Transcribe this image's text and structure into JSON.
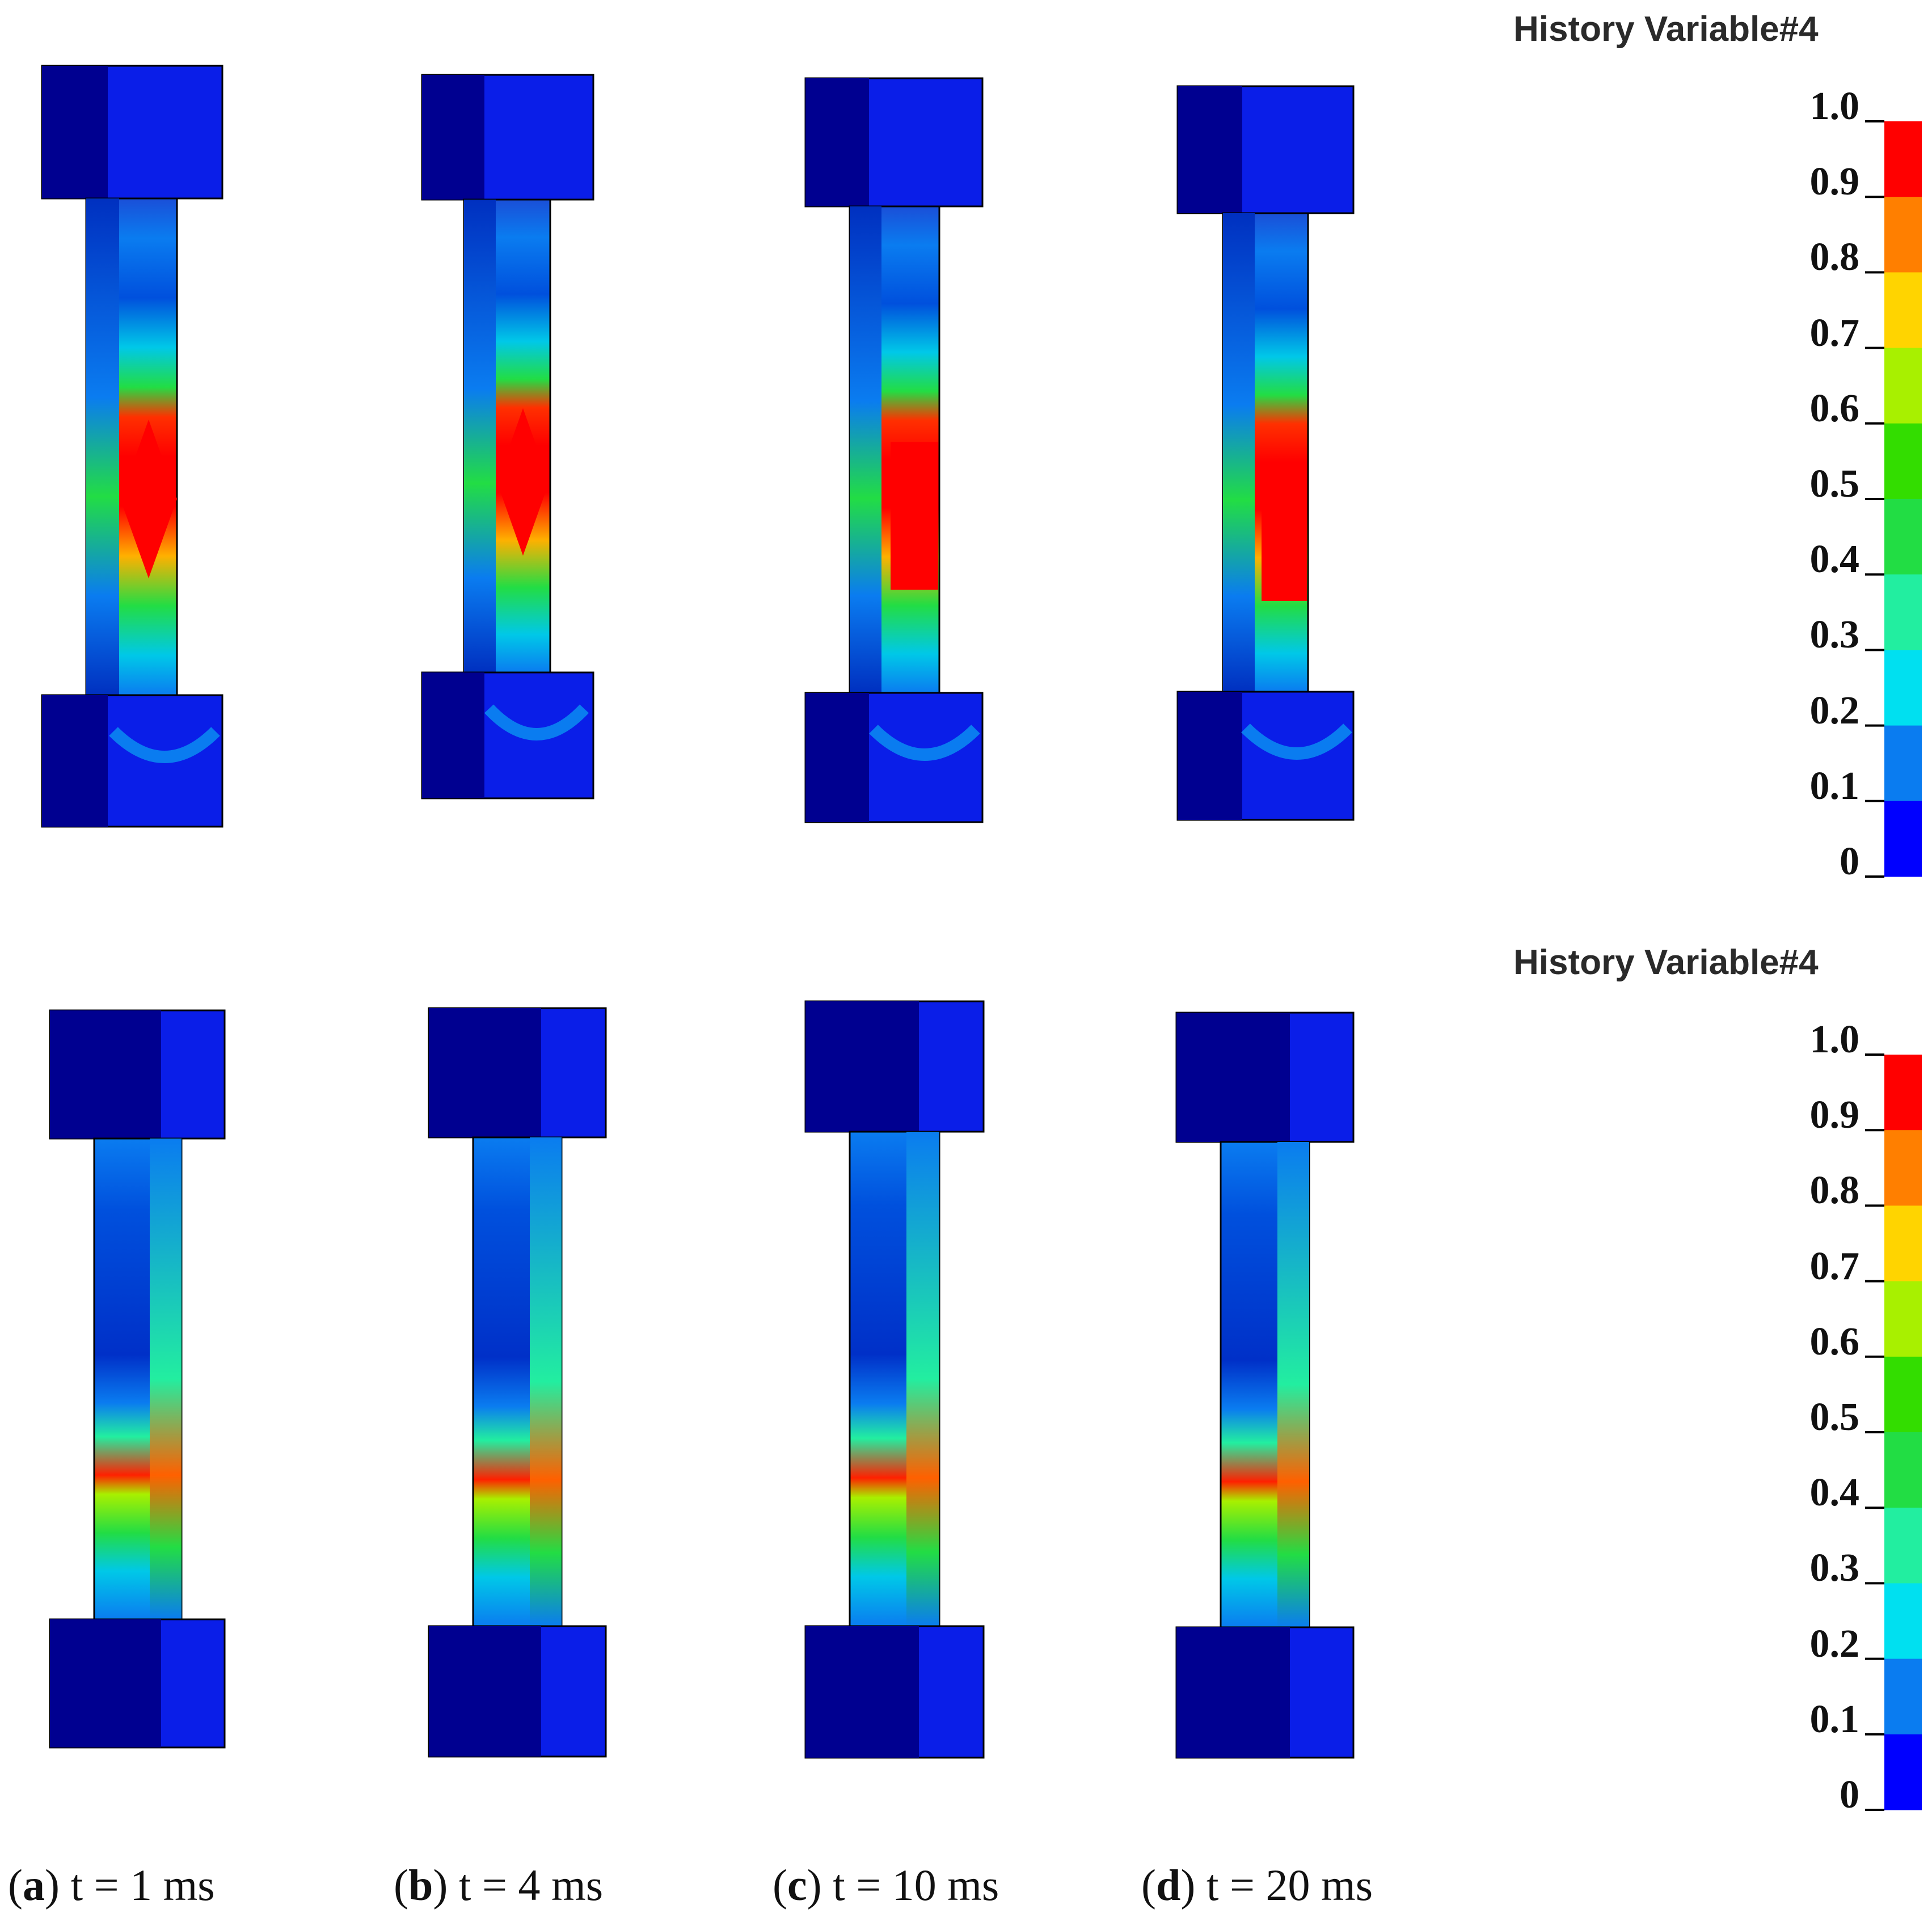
{
  "legend": {
    "title": "History Variable#4",
    "ticks": [
      "1.0",
      "0.9",
      "0.8",
      "0.7",
      "0.6",
      "0.5",
      "0.4",
      "0.3",
      "0.2",
      "0.1",
      "0"
    ],
    "colors": [
      "#ff0000",
      "#ff7f00",
      "#ffd400",
      "#a8f000",
      "#33dd00",
      "#22dd44",
      "#22eea0",
      "#00e0f0",
      "#0a7cf0",
      "#0000ff"
    ]
  },
  "captions": [
    {
      "letter": "a",
      "text": "t = 1 ms"
    },
    {
      "letter": "b",
      "text": "t = 4 ms"
    },
    {
      "letter": "c",
      "text": "t = 10 ms"
    },
    {
      "letter": "d",
      "text": "t = 20 ms"
    }
  ],
  "palette": {
    "block_dark": "#000090",
    "block_light": "#0a1ee8",
    "specimen_blue": "#0050dd",
    "specimen_light": "#0a7cf0"
  }
}
